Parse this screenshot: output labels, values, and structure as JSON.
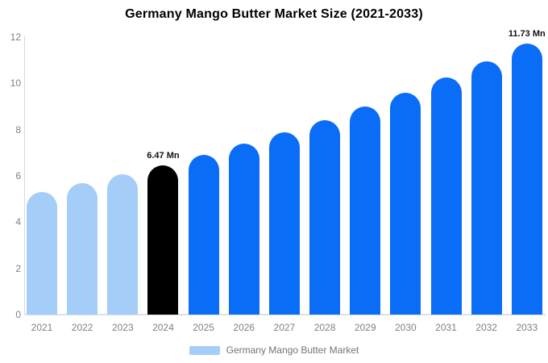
{
  "chart_data": {
    "type": "bar",
    "title": "Germany Mango Butter Market Size (2021-2033)",
    "categories": [
      "2021",
      "2022",
      "2023",
      "2024",
      "2025",
      "2026",
      "2027",
      "2028",
      "2029",
      "2030",
      "2031",
      "2032",
      "2033"
    ],
    "series": [
      {
        "name": "Germany Mango Butter Market",
        "values": [
          5.31,
          5.67,
          6.06,
          6.47,
          6.91,
          7.38,
          7.88,
          8.42,
          8.99,
          9.6,
          10.26,
          10.96,
          11.73
        ]
      }
    ],
    "bar_colors": [
      "#A4CDF8",
      "#A4CDF8",
      "#A4CDF8",
      "#000000",
      "#0A6DF7",
      "#0A6DF7",
      "#0A6DF7",
      "#0A6DF7",
      "#0A6DF7",
      "#0A6DF7",
      "#0A6DF7",
      "#0A6DF7",
      "#0A6DF7"
    ],
    "yticks": [
      0,
      2,
      4,
      6,
      8,
      10,
      12
    ],
    "ylim": [
      0,
      12
    ],
    "xlabel": "",
    "ylabel": "",
    "grid": false,
    "legend_position": "bottom",
    "annotations": [
      {
        "index": 3,
        "category": "2024",
        "text": "6.47 Mn"
      },
      {
        "index": 12,
        "category": "2033",
        "text": "11.73 Mn"
      }
    ]
  },
  "legend": {
    "label": "Germany Mango Butter Market",
    "swatch_color": "#A4CDF8"
  },
  "colors": {
    "historical_bar": "#A4CDF8",
    "base_year_bar": "#000000",
    "forecast_bar": "#0A6DF7",
    "axis_line": "#d9d9d9",
    "baseline": "#dde1e6",
    "tick_text": "#808080",
    "annotation_text": "#111111",
    "title_text": "#000000"
  }
}
